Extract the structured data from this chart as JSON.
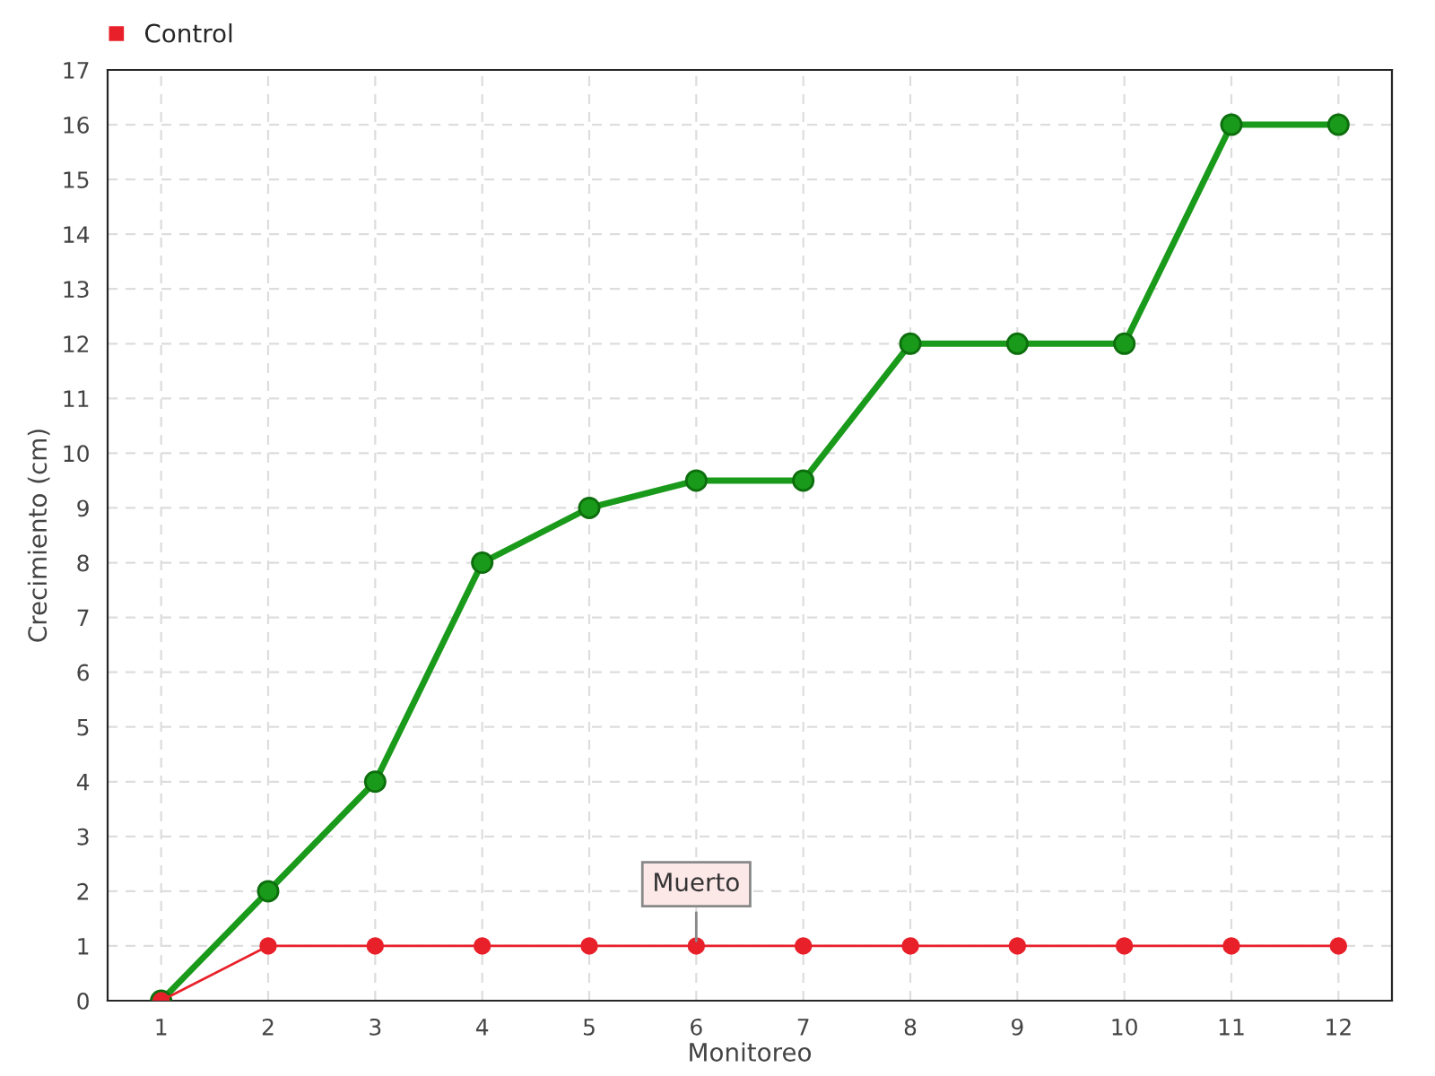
{
  "chart_data": {
    "type": "line",
    "xlabel": "Monitoreo",
    "ylabel": "Crecimiento (cm)",
    "categories": [
      "1",
      "2",
      "3",
      "4",
      "5",
      "6",
      "7",
      "8",
      "9",
      "10",
      "11",
      "12"
    ],
    "series": [
      {
        "color": "#1a9a1a",
        "values": [
          0,
          2,
          4,
          8,
          9,
          9.5,
          9.5,
          12,
          12,
          12,
          16,
          16
        ]
      },
      {
        "name": "Control",
        "color": "#e8202a",
        "values": [
          0,
          1,
          1,
          1,
          1,
          1,
          1,
          1,
          1,
          1,
          1,
          1
        ]
      }
    ],
    "ylim": [
      0,
      17
    ],
    "yticks": [
      0,
      1,
      2,
      3,
      4,
      5,
      6,
      7,
      8,
      9,
      10,
      11,
      12,
      13,
      14,
      15,
      16,
      17
    ],
    "grid": true,
    "legend": "top left",
    "marker": "circle",
    "line_style": "solid",
    "annotations": [
      {
        "text": "Muerto",
        "x": "6",
        "y": 1
      }
    ]
  }
}
